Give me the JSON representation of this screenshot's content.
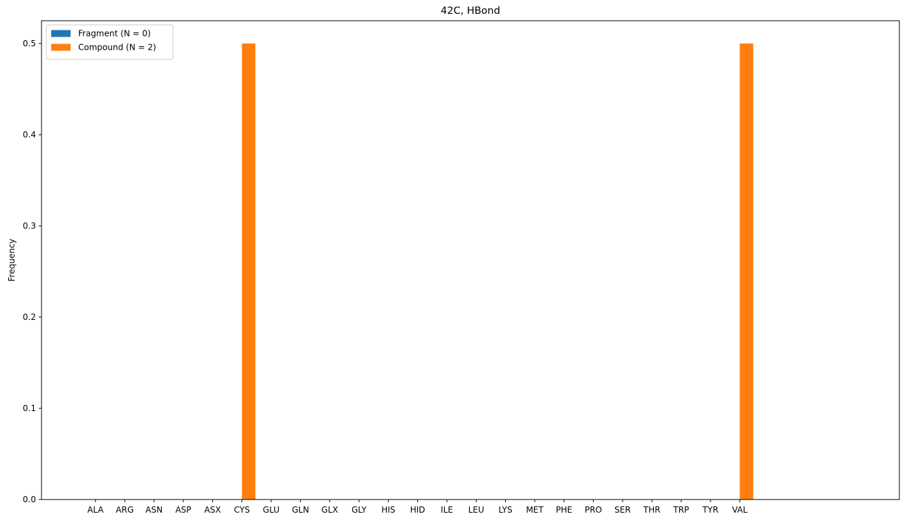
{
  "chart_data": {
    "type": "bar",
    "title": "42C, HBond",
    "xlabel": "",
    "ylabel": "Frequency",
    "categories": [
      "ALA",
      "ARG",
      "ASN",
      "ASP",
      "ASX",
      "CYS",
      "GLU",
      "GLN",
      "GLX",
      "GLY",
      "HIS",
      "HID",
      "ILE",
      "LEU",
      "LYS",
      "MET",
      "PHE",
      "PRO",
      "SER",
      "THR",
      "TRP",
      "TYR",
      "VAL"
    ],
    "series": [
      {
        "name": "Fragment (N = 0)",
        "color": "#1f77b4",
        "values": [
          0,
          0,
          0,
          0,
          0,
          0,
          0,
          0,
          0,
          0,
          0,
          0,
          0,
          0,
          0,
          0,
          0,
          0,
          0,
          0,
          0,
          0,
          0
        ]
      },
      {
        "name": "Compound (N = 2)",
        "color": "#ff7f0e",
        "values": [
          0,
          0,
          0,
          0,
          0,
          0.5,
          0,
          0,
          0,
          0,
          0,
          0,
          0,
          0,
          0,
          0,
          0,
          0,
          0,
          0,
          0,
          0,
          0.5
        ]
      }
    ],
    "ylim": [
      0,
      0.525
    ],
    "yticks": [
      "0.0",
      "0.1",
      "0.2",
      "0.3",
      "0.4",
      "0.5"
    ],
    "legend_position": "top-left",
    "grid": false
  }
}
